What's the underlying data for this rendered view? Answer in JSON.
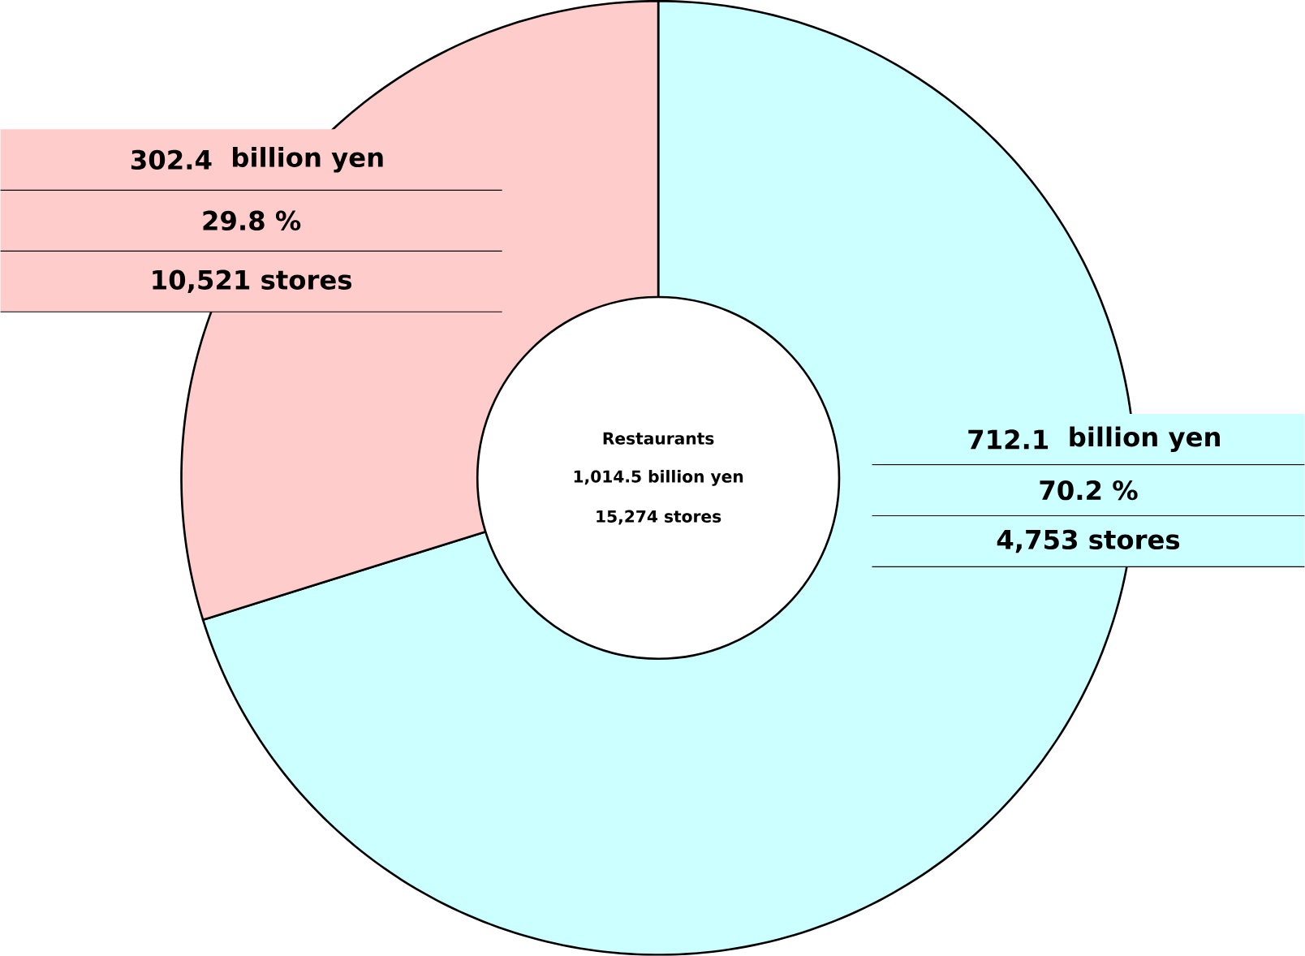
{
  "chart_data": {
    "type": "donut",
    "categories": [
      null,
      null
    ],
    "values": [
      712.1,
      302.4
    ],
    "colors": [
      "#ccffff",
      "#ffcccc"
    ],
    "data_labels": true,
    "annotations": [
      "billion yen",
      "70.2 %",
      "4,753  stores",
      "billion yen",
      "29.8 %",
      "10,521  stores",
      "Restaurants",
      "1,014.5  billion yen",
      "15,274  stores"
    ]
  }
}
